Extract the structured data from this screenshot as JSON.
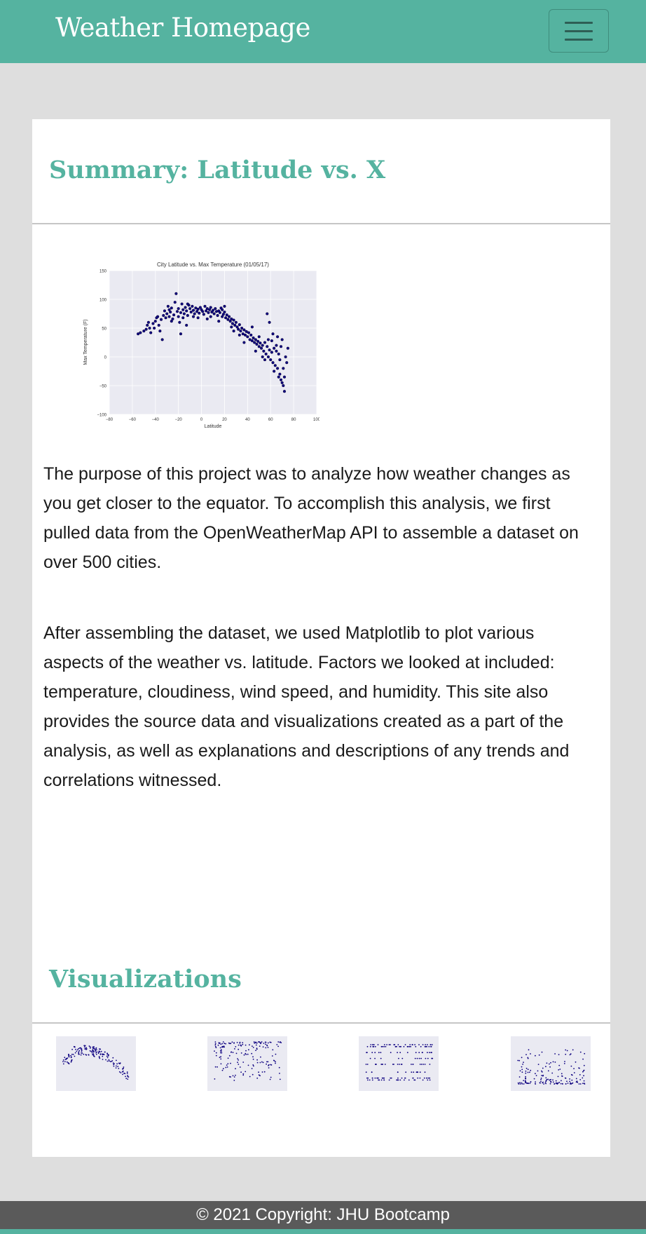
{
  "navbar": {
    "brand": "Weather Homepage",
    "menu_icon": "hamburger-menu-icon"
  },
  "summary": {
    "title": "Summary: Latitude vs. X",
    "paragraphs": [
      "The purpose of this project was to analyze how weather changes as you get closer to the equator. To accomplish this analysis, we first pulled data from the OpenWeatherMap API to assemble a dataset on over 500 cities.",
      "After assembling the dataset, we used Matplotlib to plot various aspects of the weather vs. latitude. Factors we looked at included: temperature, cloudiness, wind speed, and humidity. This site also provides the source data and visualizations created as a part of the analysis, as well as explanations and descriptions of any trends and correlations witnessed."
    ]
  },
  "visualizations": {
    "title": "Visualizations"
  },
  "footer": {
    "text": "© 2021 Copyright: JHU Bootcamp"
  },
  "colors": {
    "accent": "#55b3a0",
    "navbar": "#55b3a0",
    "footer": "#5a5a5a",
    "point": "#0d0080",
    "plot_bg": "#eaeaf2"
  },
  "chart_data": {
    "type": "scatter",
    "title": "City Latitude vs. Max Temperature (01/05/17)",
    "xlabel": "Latitude",
    "ylabel": "Max Temperature (F)",
    "xlim": [
      -80,
      100
    ],
    "ylim": [
      -100,
      150
    ],
    "xticks": [
      "-80",
      "-60",
      "-40",
      "-20",
      "0",
      "20",
      "40",
      "60",
      "80",
      "100"
    ],
    "yticks": [
      "150",
      "100",
      "50",
      "0",
      "-50",
      "-100"
    ],
    "grid": true,
    "points": [
      [
        -55,
        40
      ],
      [
        -53,
        42
      ],
      [
        -50,
        45
      ],
      [
        -47,
        55
      ],
      [
        -46,
        60
      ],
      [
        -45,
        50
      ],
      [
        -44,
        42
      ],
      [
        -42,
        58
      ],
      [
        -40,
        62
      ],
      [
        -38,
        70
      ],
      [
        -37,
        55
      ],
      [
        -35,
        65
      ],
      [
        -33,
        72
      ],
      [
        -32,
        80
      ],
      [
        -31,
        68
      ],
      [
        -30,
        75
      ],
      [
        -29,
        88
      ],
      [
        -28,
        70
      ],
      [
        -27,
        78
      ],
      [
        -26,
        85
      ],
      [
        -25,
        66
      ],
      [
        -24,
        73
      ],
      [
        -23,
        95
      ],
      [
        -22,
        110
      ],
      [
        -21,
        79
      ],
      [
        -20,
        84
      ],
      [
        -19,
        60
      ],
      [
        -18,
        77
      ],
      [
        -17,
        92
      ],
      [
        -16,
        82
      ],
      [
        -15,
        75
      ],
      [
        -14,
        86
      ],
      [
        -13,
        80
      ],
      [
        -12,
        72
      ],
      [
        -11,
        90
      ],
      [
        -10,
        84
      ],
      [
        -9,
        78
      ],
      [
        -8,
        88
      ],
      [
        -7,
        81
      ],
      [
        -6,
        75
      ],
      [
        -5,
        85
      ],
      [
        -4,
        79
      ],
      [
        -3,
        83
      ],
      [
        -2,
        76
      ],
      [
        -1,
        86
      ],
      [
        0,
        82
      ],
      [
        1,
        79
      ],
      [
        2,
        74
      ],
      [
        3,
        88
      ],
      [
        4,
        80
      ],
      [
        5,
        84
      ],
      [
        6,
        77
      ],
      [
        7,
        82
      ],
      [
        8,
        86
      ],
      [
        9,
        78
      ],
      [
        10,
        81
      ],
      [
        11,
        75
      ],
      [
        12,
        84
      ],
      [
        13,
        79
      ],
      [
        14,
        72
      ],
      [
        15,
        80
      ],
      [
        16,
        77
      ],
      [
        17,
        85
      ],
      [
        18,
        70
      ],
      [
        19,
        74
      ],
      [
        20,
        78
      ],
      [
        21,
        68
      ],
      [
        22,
        73
      ],
      [
        23,
        65
      ],
      [
        24,
        70
      ],
      [
        25,
        62
      ],
      [
        26,
        66
      ],
      [
        27,
        58
      ],
      [
        28,
        64
      ],
      [
        29,
        55
      ],
      [
        30,
        60
      ],
      [
        31,
        52
      ],
      [
        32,
        48
      ],
      [
        33,
        56
      ],
      [
        34,
        45
      ],
      [
        35,
        50
      ],
      [
        36,
        40
      ],
      [
        37,
        47
      ],
      [
        38,
        38
      ],
      [
        39,
        44
      ],
      [
        40,
        35
      ],
      [
        41,
        42
      ],
      [
        42,
        30
      ],
      [
        43,
        38
      ],
      [
        44,
        28
      ],
      [
        45,
        33
      ],
      [
        46,
        25
      ],
      [
        47,
        30
      ],
      [
        48,
        22
      ],
      [
        49,
        27
      ],
      [
        50,
        18
      ],
      [
        51,
        24
      ],
      [
        52,
        15
      ],
      [
        53,
        20
      ],
      [
        54,
        10
      ],
      [
        55,
        25
      ],
      [
        56,
        5
      ],
      [
        57,
        18
      ],
      [
        58,
        0
      ],
      [
        59,
        12
      ],
      [
        60,
        -5
      ],
      [
        61,
        8
      ],
      [
        62,
        -10
      ],
      [
        63,
        15
      ],
      [
        64,
        -15
      ],
      [
        65,
        20
      ],
      [
        66,
        -20
      ],
      [
        67,
        5
      ],
      [
        68,
        -30
      ],
      [
        69,
        -40
      ],
      [
        70,
        -45
      ],
      [
        71,
        -50
      ],
      [
        72,
        -60
      ],
      [
        73,
        0
      ],
      [
        75,
        15
      ],
      [
        74,
        -10
      ],
      [
        -36,
        45
      ],
      [
        -18,
        40
      ],
      [
        -13,
        55
      ],
      [
        57,
        75
      ],
      [
        59,
        60
      ],
      [
        62,
        40
      ],
      [
        66,
        35
      ],
      [
        70,
        30
      ],
      [
        -48,
        48
      ],
      [
        -41,
        50
      ],
      [
        -34,
        30
      ],
      [
        -26,
        62
      ],
      [
        -16,
        68
      ],
      [
        -7,
        70
      ],
      [
        5,
        66
      ],
      [
        15,
        62
      ],
      [
        20,
        88
      ],
      [
        26,
        52
      ],
      [
        33,
        38
      ],
      [
        44,
        52
      ],
      [
        50,
        35
      ],
      [
        55,
        -5
      ],
      [
        58,
        30
      ],
      [
        63,
        -25
      ],
      [
        65,
        10
      ],
      [
        67,
        -35
      ],
      [
        69,
        18
      ],
      [
        71,
        -20
      ],
      [
        -39,
        68
      ],
      [
        -28,
        82
      ],
      [
        -20,
        70
      ],
      [
        -12,
        92
      ],
      [
        -3,
        68
      ],
      [
        8,
        70
      ],
      [
        18,
        82
      ],
      [
        28,
        45
      ],
      [
        37,
        25
      ],
      [
        47,
        10
      ],
      [
        53,
        0
      ],
      [
        61,
        28
      ],
      [
        68,
        -5
      ],
      [
        72,
        -35
      ]
    ]
  },
  "thumbnails": [
    {
      "name": "latitude-vs-temperature",
      "kind": "temperature"
    },
    {
      "name": "latitude-vs-humidity",
      "kind": "humidity"
    },
    {
      "name": "latitude-vs-cloudiness",
      "kind": "cloudiness"
    },
    {
      "name": "latitude-vs-wind-speed",
      "kind": "wind"
    }
  ]
}
